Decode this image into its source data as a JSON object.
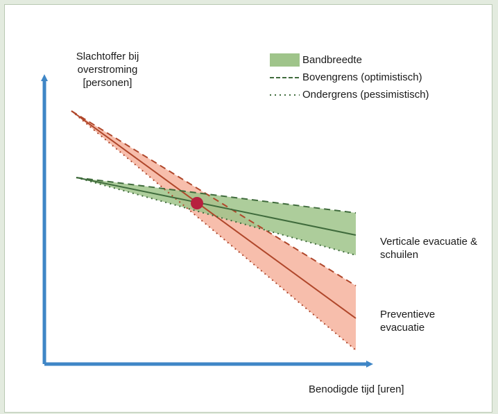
{
  "colors": {
    "page_bg": "#e3ebdf",
    "axis": "#3f86c6",
    "green_line": "#3f6b3c",
    "green_band": "#9fc48a",
    "red_line": "#b0472b",
    "red_band": "#f6b7a3",
    "intersection": "#b7203f"
  },
  "axes": {
    "y_label": "Slachtoffer bij overstroming [personen]",
    "x_label": "Benodigde tijd [uren]"
  },
  "legend": {
    "band": "Bandbreedte",
    "upper": "Bovengrens (optimistisch)",
    "lower": "Ondergrens (pessimistisch)"
  },
  "series": {
    "vertical": "Verticale evacuatie & schuilen",
    "preventive": "Preventieve evacuatie"
  }
}
